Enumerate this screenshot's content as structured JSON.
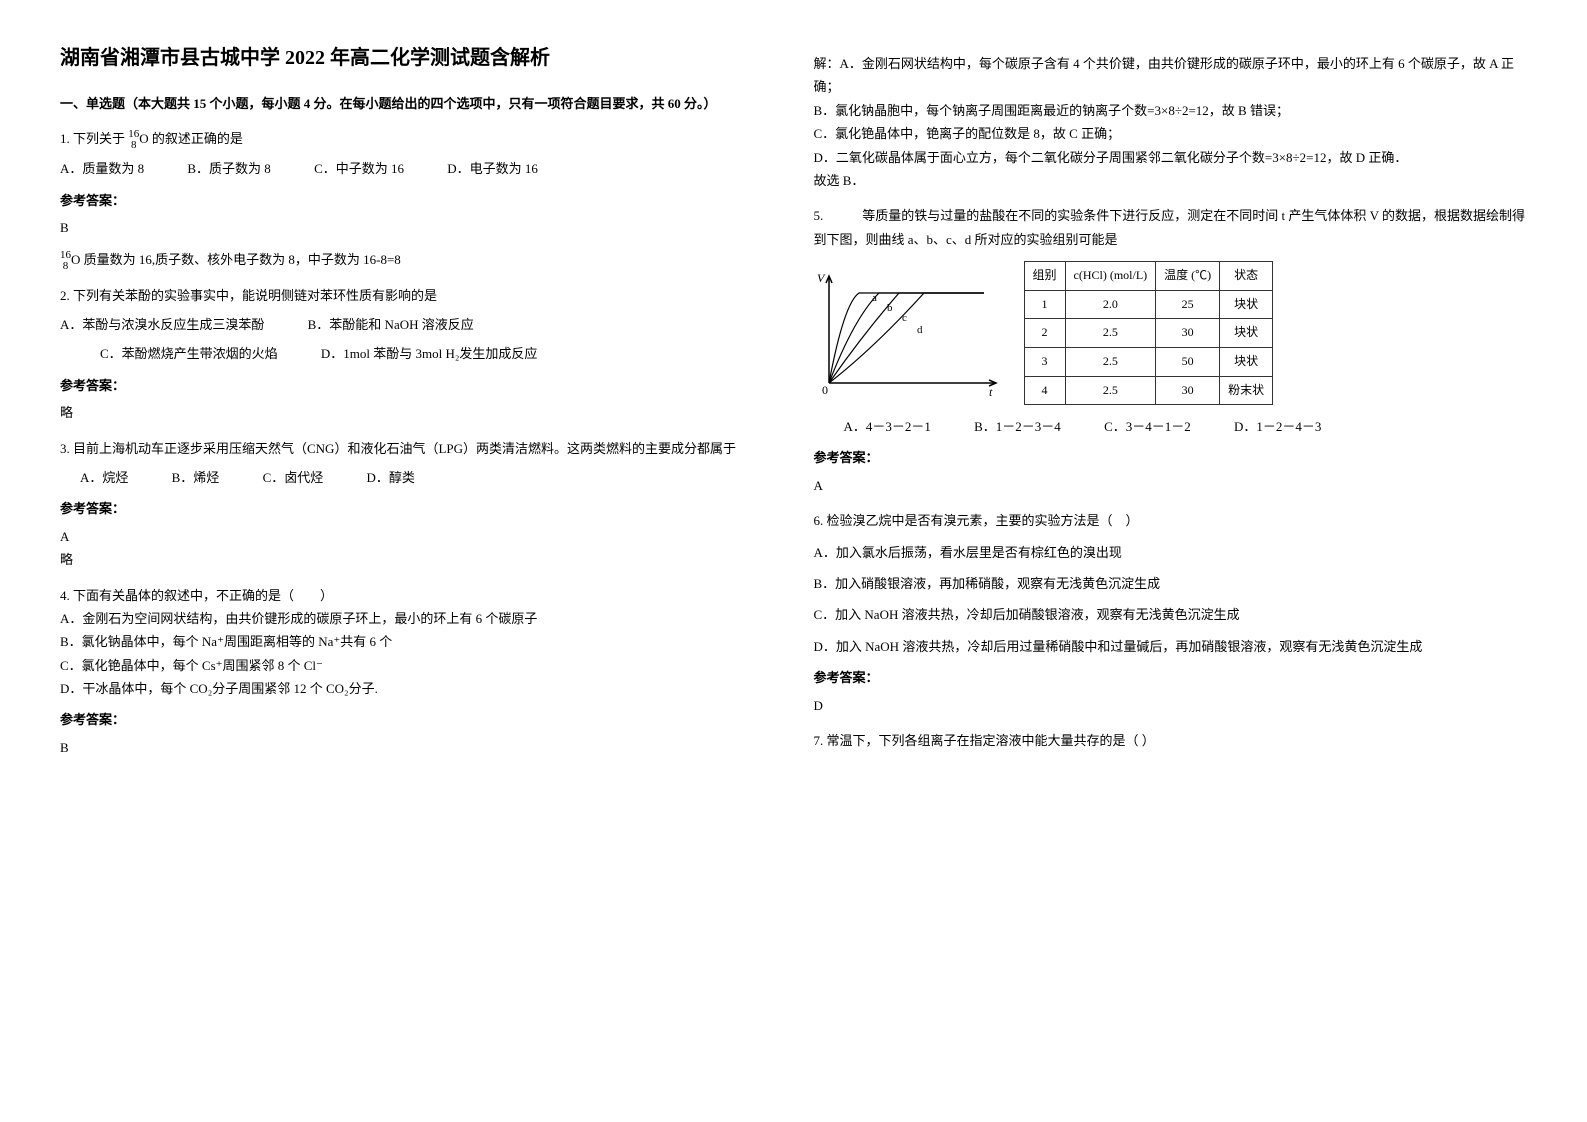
{
  "title": "湖南省湘潭市县古城中学 2022 年高二化学测试题含解析",
  "section1_header": "一、单选题（本大题共 15 个小题，每小题 4 分。在每小题给出的四个选项中，只有一项符合题目要求，共 60 分。）",
  "q1": {
    "text_prefix": "1. 下列关于 ",
    "formula": "¹⁶₈O",
    "text_suffix": " 的叙述正确的是",
    "opt_a": "A．质量数为 8",
    "opt_b": "B．质子数为 8",
    "opt_c": "C．中子数为 16",
    "opt_d": "D．电子数为 16",
    "answer_label": "参考答案：",
    "answer": "B",
    "explain": "¹⁶₈O 质量数为 16,质子数、核外电子数为 8，中子数为 16-8=8"
  },
  "q2": {
    "text": "2. 下列有关苯酚的实验事实中，能说明侧链对苯环性质有影响的是",
    "opt_a": "A．苯酚与浓溴水反应生成三溴苯酚",
    "opt_b": "B．苯酚能和 NaOH 溶液反应",
    "opt_c": "C．苯酚燃烧产生带浓烟的火焰",
    "opt_d": "D．1mol 苯酚与 3mol H₂发生加成反应",
    "answer_label": "参考答案：",
    "answer": "略"
  },
  "q3": {
    "text": "3. 目前上海机动车正逐步采用压缩天然气（CNG）和液化石油气（LPG）两类清洁燃料。这两类燃料的主要成分都属于",
    "opt_a": "A．烷烃",
    "opt_b": "B．烯烃",
    "opt_c": "C．卤代烃",
    "opt_d": "D．醇类",
    "answer_label": "参考答案：",
    "answer": "A",
    "explain": "略"
  },
  "q4": {
    "text": "4. 下面有关晶体的叙述中，不正确的是（　　）",
    "opt_a": "A．金刚石为空间网状结构，由共价键形成的碳原子环上，最小的环上有 6 个碳原子",
    "opt_b": "B．氯化钠晶体中，每个 Na⁺周围距离相等的 Na⁺共有 6 个",
    "opt_c": "C．氯化铯晶体中，每个 Cs⁺周围紧邻 8 个 Cl⁻",
    "opt_d": "D．干冰晶体中，每个 CO₂分子周围紧邻 12 个 CO₂分子.",
    "answer_label": "参考答案：",
    "answer": "B"
  },
  "q4_explain": {
    "line1": "解：A．金刚石网状结构中，每个碳原子含有 4 个共价键，由共价键形成的碳原子环中，最小的环上有 6 个碳原子，故 A 正确；",
    "line2": "B．氯化钠晶胞中，每个钠离子周围距离最近的钠离子个数=3×8÷2=12，故 B 错误；",
    "line3": "C．氯化铯晶体中，铯离子的配位数是 8，故 C 正确；",
    "line4": "D．二氧化碳晶体属于面心立方，每个二氧化碳分子周围紧邻二氧化碳分子个数=3×8÷2=12，故 D 正确．",
    "line5": "故选 B．"
  },
  "q5": {
    "text": "5.　　　等质量的铁与过量的盐酸在不同的实验条件下进行反应，测定在不同时间 t 产生气体体积 V 的数据，根据数据绘制得到下图，则曲线 a、b、c、d 所对应的实验组别可能是",
    "opt_a": "A．4－3－2－1",
    "opt_b": "B．1－2－3－4",
    "opt_c": "C．3－4－1－2",
    "opt_d": "D．1－2－4－3",
    "answer_label": "参考答案：",
    "answer": "A",
    "chart": {
      "type": "line",
      "width": 180,
      "height": 120,
      "axis_color": "#000000",
      "line_color": "#000000",
      "line_width": 1.2,
      "curves": [
        {
          "label": "a",
          "points": [
            [
              0,
              0
            ],
            [
              20,
              85
            ],
            [
              40,
              100
            ],
            [
              160,
              100
            ]
          ]
        },
        {
          "label": "b",
          "points": [
            [
              0,
              0
            ],
            [
              30,
              70
            ],
            [
              60,
              100
            ],
            [
              160,
              100
            ]
          ]
        },
        {
          "label": "c",
          "points": [
            [
              0,
              0
            ],
            [
              40,
              55
            ],
            [
              80,
              100
            ],
            [
              160,
              100
            ]
          ]
        },
        {
          "label": "d",
          "points": [
            [
              0,
              0
            ],
            [
              50,
              40
            ],
            [
              100,
              100
            ],
            [
              160,
              100
            ]
          ]
        }
      ],
      "xlabel": "t",
      "ylabel": "V"
    },
    "table": {
      "headers": [
        "组别",
        "c(HCl) (mol/L)",
        "温度 (℃)",
        "状态"
      ],
      "rows": [
        [
          "1",
          "2.0",
          "25",
          "块状"
        ],
        [
          "2",
          "2.5",
          "30",
          "块状"
        ],
        [
          "3",
          "2.5",
          "50",
          "块状"
        ],
        [
          "4",
          "2.5",
          "30",
          "粉末状"
        ]
      ],
      "border_color": "#333333",
      "header_bg": "#ffffff"
    }
  },
  "q6": {
    "text": "6. 检验溴乙烷中是否有溴元素，主要的实验方法是（　）",
    "opt_a": "A．加入氯水后振荡，看水层里是否有棕红色的溴出现",
    "opt_b": "B．加入硝酸银溶液，再加稀硝酸，观察有无浅黄色沉淀生成",
    "opt_c": "C．加入 NaOH 溶液共热，冷却后加硝酸银溶液，观察有无浅黄色沉淀生成",
    "opt_d": "D．加入 NaOH 溶液共热，冷却后用过量稀硝酸中和过量碱后，再加硝酸银溶液，观察有无浅黄色沉淀生成",
    "answer_label": "参考答案：",
    "answer": "D"
  },
  "q7": {
    "text": "7. 常温下，下列各组离子在指定溶液中能大量共存的是（ ）"
  }
}
